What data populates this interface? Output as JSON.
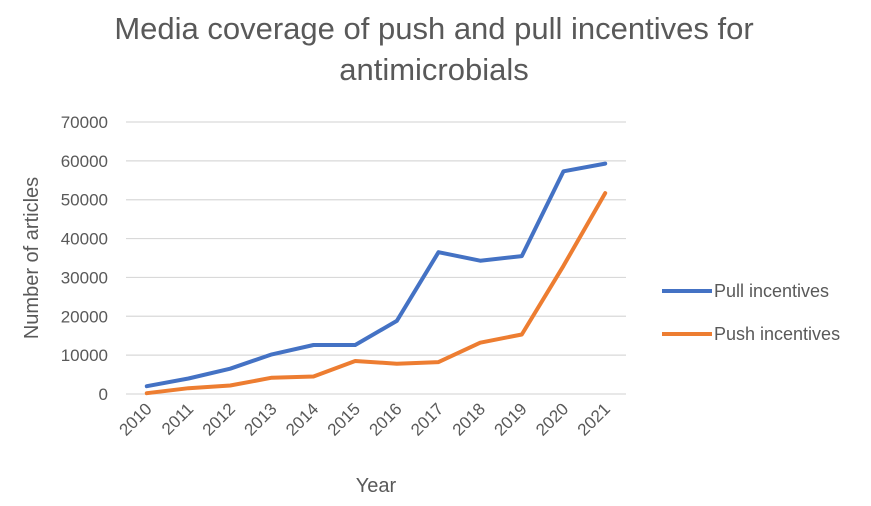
{
  "chart_data": {
    "type": "line",
    "title_lines": [
      "Media coverage of push and pull incentives for",
      "antimicrobials"
    ],
    "xlabel": "Year",
    "ylabel": "Number of articles",
    "x": [
      "2010",
      "2011",
      "2012",
      "2013",
      "2014",
      "2015",
      "2016",
      "2017",
      "2018",
      "2019",
      "2020",
      "2021"
    ],
    "ylim": [
      0,
      70000
    ],
    "yticks": [
      0,
      10000,
      20000,
      30000,
      40000,
      50000,
      60000,
      70000
    ],
    "grid": true,
    "legend_position": "right",
    "series": [
      {
        "name": "Pull incentives",
        "color": "#4472C4",
        "values": [
          2000,
          4000,
          6500,
          10200,
          12600,
          12600,
          18800,
          36500,
          34300,
          35500,
          57300,
          59300
        ]
      },
      {
        "name": "Push incentives",
        "color": "#ED7D31",
        "values": [
          200,
          1500,
          2200,
          4200,
          4500,
          8500,
          7800,
          8200,
          13200,
          15300,
          33000,
          51700
        ]
      }
    ]
  }
}
